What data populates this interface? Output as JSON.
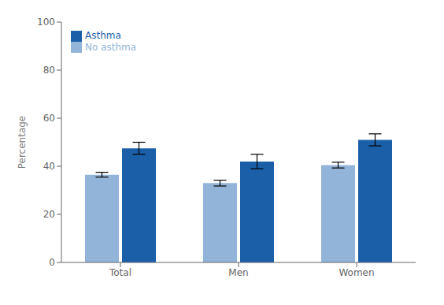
{
  "chart_data": {
    "type": "bar",
    "categories": [
      "Total",
      "Men",
      "Women"
    ],
    "series": [
      {
        "name": "No asthma",
        "color": "#92b4d8",
        "values": [
          36.5,
          33.0,
          40.5
        ],
        "errors": [
          1.0,
          1.2,
          1.2
        ]
      },
      {
        "name": "Asthma",
        "color": "#1a5fa8",
        "values": [
          47.5,
          42.0,
          51.0
        ],
        "errors": [
          2.5,
          3.0,
          2.5
        ]
      }
    ],
    "ylabel": "Percentage",
    "ylim": [
      0,
      100
    ],
    "yticks": [
      0,
      20,
      40,
      60,
      80,
      100
    ],
    "grid": false,
    "legend": "upper left"
  }
}
